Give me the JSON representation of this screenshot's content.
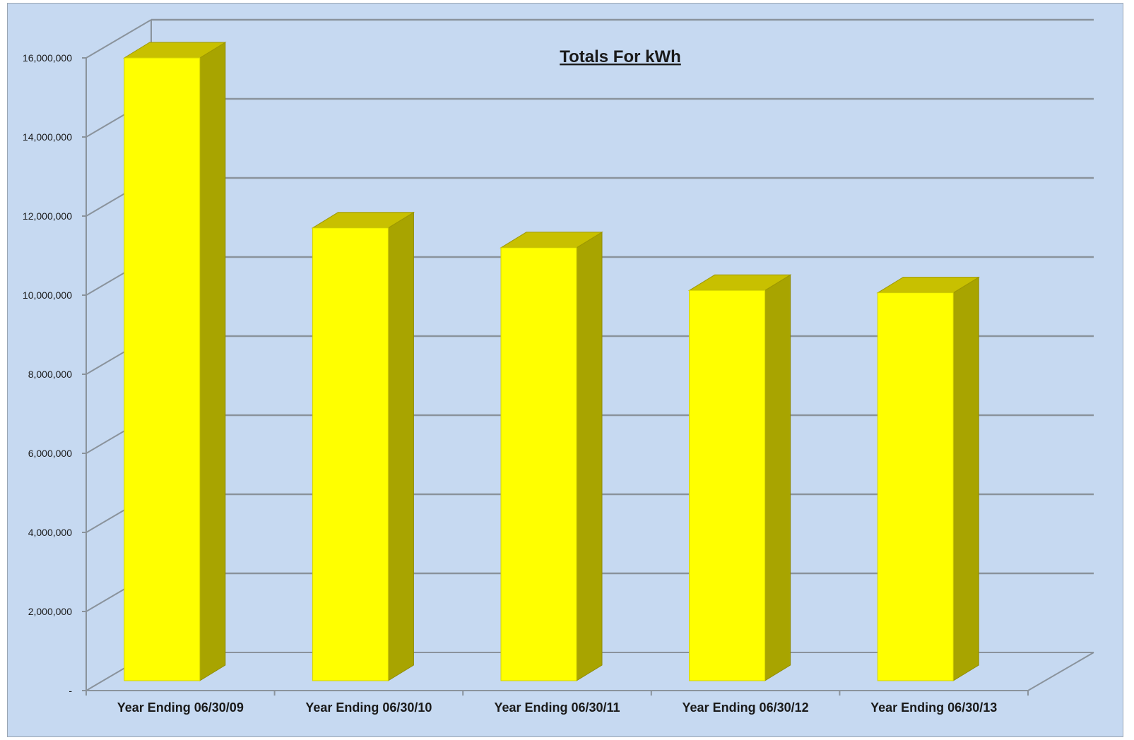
{
  "chart_data": {
    "type": "bar",
    "title": "Totals For kWh",
    "xlabel": "",
    "ylabel": "",
    "categories": [
      "Year Ending 06/30/09",
      "Year Ending 06/30/10",
      "Year Ending 06/30/11",
      "Year Ending 06/30/12",
      "Year Ending 06/30/13"
    ],
    "values": [
      16000000,
      11700000,
      11200000,
      10120000,
      10060000
    ],
    "ylim": [
      0,
      16000000
    ],
    "yticks": [
      0,
      2000000,
      4000000,
      6000000,
      8000000,
      10000000,
      12000000,
      14000000,
      16000000
    ],
    "ytick_labels": [
      "-",
      "2,000,000",
      "4,000,000",
      "6,000,000",
      "8,000,000",
      "10,000,000",
      "12,000,000",
      "14,000,000",
      "16,000,000"
    ],
    "grid": true,
    "legend": "none",
    "style": "3d-column",
    "colors": {
      "background": "#c6d9f1",
      "bar_front": "#ffff00",
      "bar_top": "#c8c000",
      "bar_side": "#a8a400",
      "gridline": "#8a939c",
      "text": "#1a1a1a"
    }
  }
}
